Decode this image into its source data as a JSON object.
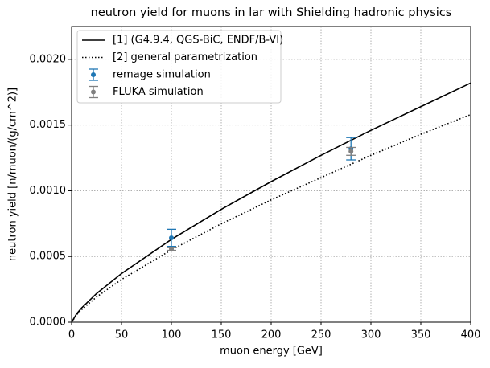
{
  "chart_data": {
    "type": "line",
    "title": "neutron yield for muons in lar with Shielding hadronic physics",
    "x_label": "muon energy [GeV]",
    "y_label": "neutron yield [n/muon/(g/cm^2)]",
    "xlim": [
      0,
      400
    ],
    "xticks": [
      0,
      50,
      100,
      150,
      200,
      250,
      300,
      350,
      400
    ],
    "ylim": [
      0,
      0.00225
    ],
    "yticks": [
      {
        "value": 0,
        "label": "0.0000"
      },
      {
        "value": 0.0005,
        "label": "0.0005"
      },
      {
        "value": 0.001,
        "label": "0.0010"
      },
      {
        "value": 0.0015,
        "label": "0.0015"
      },
      {
        "value": 0.002,
        "label": "0.0020"
      }
    ],
    "grid": true,
    "legend": "upper-left",
    "series": [
      {
        "name": "[1] (G4.9.4, QGS-BiC, ENDF/B-VI)",
        "color": "#000000",
        "style": "solid",
        "x": [
          0,
          5,
          10,
          25,
          50,
          100,
          150,
          200,
          250,
          300,
          350,
          400
        ],
        "y": [
          0,
          6.37e-05,
          0.000108,
          0.000218,
          0.00037,
          0.00063,
          0.000859,
          0.00107,
          0.00127,
          0.00146,
          0.00164,
          0.00182
        ]
      },
      {
        "name": "[2] general parametrization",
        "color": "#000000",
        "style": "dotted",
        "x": [
          0,
          5,
          10,
          25,
          50,
          100,
          150,
          200,
          250,
          300,
          350,
          400
        ],
        "y": [
          0,
          5.64e-05,
          9.56e-05,
          0.000192,
          0.000325,
          0.00055,
          0.000749,
          0.000931,
          0.0011,
          0.00127,
          0.00143,
          0.00158
        ]
      },
      {
        "name": "remage simulation",
        "color": "#1f77b4",
        "style": "errorbar",
        "x": [
          100,
          280
        ],
        "y": [
          0.000642,
          0.00132
        ],
        "errors": [
          6.5e-05,
          8.5e-05
        ]
      },
      {
        "name": "FLUKA simulation",
        "color": "#808080",
        "style": "errorbar",
        "x": [
          100,
          280
        ],
        "y": [
          0.000557,
          0.0013
        ],
        "errors": [
          1e-05,
          3e-05
        ]
      }
    ]
  }
}
